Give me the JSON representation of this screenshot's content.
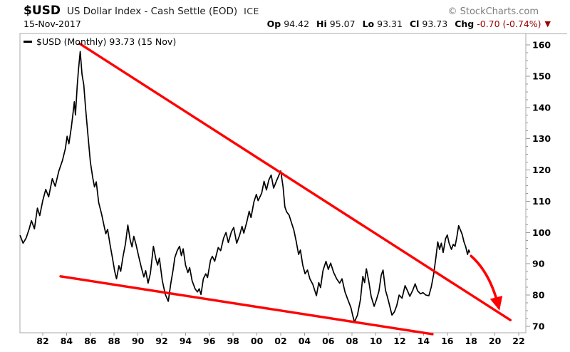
{
  "header": {
    "symbol": "$USD",
    "title": "US Dollar Index - Cash Settle (EOD)",
    "exchange": "ICE",
    "copyright": "© StockCharts.com",
    "date": "15-Nov-2017",
    "quote": {
      "op_label": "Op",
      "op_value": "94.42",
      "hi_label": "Hi",
      "hi_value": "95.07",
      "lo_label": "Lo",
      "lo_value": "93.31",
      "cl_label": "Cl",
      "cl_value": "93.73",
      "chg_label": "Chg",
      "chg_value": "-0.70 (-0.74%)",
      "direction_icon": "▼"
    }
  },
  "legend": {
    "dash": "",
    "text": "$USD (Monthly) 93.73 (15 Nov)"
  },
  "colors": {
    "price_line": "#000000",
    "annotation_red": "#ff0000",
    "change_red": "#990000",
    "frame": "#aaaaaa",
    "tick": "#999999",
    "axis_text": "#000000",
    "background": "#ffffff"
  },
  "chart_data": {
    "type": "line",
    "title": "$USD (Monthly) 93.73 (15 Nov)",
    "symbol": "$USD",
    "timeframe": "Monthly",
    "last_value": 93.73,
    "last_date": "15 Nov",
    "x_axis": {
      "tick_labels": [
        "82",
        "84",
        "86",
        "88",
        "90",
        "92",
        "94",
        "96",
        "98",
        "00",
        "02",
        "04",
        "06",
        "08",
        "10",
        "12",
        "14",
        "16",
        "18",
        "20",
        "22"
      ],
      "tick_years": [
        1982,
        1984,
        1986,
        1988,
        1990,
        1992,
        1994,
        1996,
        1998,
        2000,
        2002,
        2004,
        2006,
        2008,
        2010,
        2012,
        2014,
        2016,
        2018,
        2020,
        2022
      ],
      "range_years": [
        1980.1,
        2022.6
      ]
    },
    "y_axis": {
      "tick_values": [
        70,
        80,
        90,
        100,
        110,
        120,
        130,
        140,
        150,
        160
      ],
      "minor_step": 2.5,
      "range": [
        68.9,
        163.6
      ],
      "side": "right"
    },
    "grid": false,
    "legend_position": "top-left",
    "series": [
      {
        "name": "$USD (Monthly)",
        "color": "#000000",
        "points": [
          [
            1980.1,
            99.0
          ],
          [
            1980.35,
            96.6
          ],
          [
            1980.6,
            98.2
          ],
          [
            1980.85,
            101.0
          ],
          [
            1981.05,
            103.8
          ],
          [
            1981.3,
            101.2
          ],
          [
            1981.55,
            107.8
          ],
          [
            1981.75,
            105.4
          ],
          [
            1982.0,
            110.2
          ],
          [
            1982.25,
            113.8
          ],
          [
            1982.5,
            111.4
          ],
          [
            1982.8,
            117.2
          ],
          [
            1983.05,
            114.8
          ],
          [
            1983.35,
            119.6
          ],
          [
            1983.65,
            123.0
          ],
          [
            1983.9,
            126.8
          ],
          [
            1984.05,
            130.8
          ],
          [
            1984.2,
            128.4
          ],
          [
            1984.4,
            133.6
          ],
          [
            1984.55,
            138.4
          ],
          [
            1984.65,
            141.8
          ],
          [
            1984.75,
            137.6
          ],
          [
            1984.9,
            147.0
          ],
          [
            1985.0,
            152.0
          ],
          [
            1985.15,
            157.9
          ],
          [
            1985.3,
            150.6
          ],
          [
            1985.45,
            147.2
          ],
          [
            1985.6,
            139.8
          ],
          [
            1985.8,
            131.0
          ],
          [
            1986.0,
            122.6
          ],
          [
            1986.2,
            117.6
          ],
          [
            1986.35,
            114.6
          ],
          [
            1986.5,
            116.2
          ],
          [
            1986.7,
            109.6
          ],
          [
            1986.95,
            105.8
          ],
          [
            1987.15,
            102.2
          ],
          [
            1987.3,
            99.6
          ],
          [
            1987.45,
            101.0
          ],
          [
            1987.65,
            96.2
          ],
          [
            1987.85,
            92.0
          ],
          [
            1988.05,
            87.6
          ],
          [
            1988.2,
            85.2
          ],
          [
            1988.4,
            89.4
          ],
          [
            1988.55,
            87.6
          ],
          [
            1988.75,
            92.4
          ],
          [
            1988.95,
            96.4
          ],
          [
            1989.15,
            102.4
          ],
          [
            1989.35,
            97.6
          ],
          [
            1989.5,
            95.4
          ],
          [
            1989.65,
            98.8
          ],
          [
            1989.85,
            96.0
          ],
          [
            1990.05,
            92.6
          ],
          [
            1990.3,
            88.6
          ],
          [
            1990.5,
            85.8
          ],
          [
            1990.65,
            87.8
          ],
          [
            1990.85,
            83.8
          ],
          [
            1991.05,
            87.0
          ],
          [
            1991.3,
            95.6
          ],
          [
            1991.5,
            91.6
          ],
          [
            1991.65,
            89.6
          ],
          [
            1991.8,
            91.8
          ],
          [
            1992.05,
            84.6
          ],
          [
            1992.3,
            80.2
          ],
          [
            1992.55,
            78.0
          ],
          [
            1992.75,
            83.4
          ],
          [
            1992.95,
            88.0
          ],
          [
            1993.1,
            92.0
          ],
          [
            1993.3,
            94.2
          ],
          [
            1993.5,
            95.6
          ],
          [
            1993.65,
            92.6
          ],
          [
            1993.8,
            94.8
          ],
          [
            1994.0,
            89.6
          ],
          [
            1994.2,
            87.2
          ],
          [
            1994.35,
            88.8
          ],
          [
            1994.55,
            84.6
          ],
          [
            1994.8,
            82.0
          ],
          [
            1995.0,
            81.0
          ],
          [
            1995.15,
            82.0
          ],
          [
            1995.3,
            80.2
          ],
          [
            1995.5,
            85.2
          ],
          [
            1995.7,
            86.8
          ],
          [
            1995.85,
            85.6
          ],
          [
            1996.1,
            91.2
          ],
          [
            1996.25,
            92.4
          ],
          [
            1996.45,
            90.8
          ],
          [
            1996.75,
            95.2
          ],
          [
            1996.95,
            94.2
          ],
          [
            1997.2,
            98.2
          ],
          [
            1997.4,
            100.0
          ],
          [
            1997.6,
            96.8
          ],
          [
            1997.85,
            100.2
          ],
          [
            1998.05,
            101.6
          ],
          [
            1998.3,
            96.6
          ],
          [
            1998.55,
            99.2
          ],
          [
            1998.75,
            102.0
          ],
          [
            1998.9,
            99.8
          ],
          [
            1999.15,
            103.4
          ],
          [
            1999.35,
            106.8
          ],
          [
            1999.5,
            104.8
          ],
          [
            1999.75,
            109.8
          ],
          [
            1999.95,
            112.2
          ],
          [
            2000.1,
            110.2
          ],
          [
            2000.4,
            112.6
          ],
          [
            2000.6,
            116.4
          ],
          [
            2000.8,
            113.6
          ],
          [
            2001.0,
            116.8
          ],
          [
            2001.2,
            118.4
          ],
          [
            2001.4,
            114.2
          ],
          [
            2001.65,
            116.6
          ],
          [
            2002.0,
            119.7
          ],
          [
            2002.2,
            114.6
          ],
          [
            2002.35,
            108.2
          ],
          [
            2002.5,
            106.6
          ],
          [
            2002.7,
            105.6
          ],
          [
            2002.9,
            103.2
          ],
          [
            2003.1,
            100.8
          ],
          [
            2003.3,
            97.2
          ],
          [
            2003.5,
            93.0
          ],
          [
            2003.65,
            94.4
          ],
          [
            2003.85,
            89.6
          ],
          [
            2004.05,
            86.8
          ],
          [
            2004.25,
            88.0
          ],
          [
            2004.45,
            85.2
          ],
          [
            2004.7,
            83.4
          ],
          [
            2005.0,
            79.8
          ],
          [
            2005.2,
            84.0
          ],
          [
            2005.35,
            82.4
          ],
          [
            2005.55,
            87.8
          ],
          [
            2005.8,
            90.8
          ],
          [
            2006.0,
            88.2
          ],
          [
            2006.2,
            90.2
          ],
          [
            2006.45,
            87.2
          ],
          [
            2006.7,
            85.2
          ],
          [
            2006.95,
            83.8
          ],
          [
            2007.15,
            85.2
          ],
          [
            2007.4,
            81.0
          ],
          [
            2007.65,
            78.4
          ],
          [
            2007.9,
            76.0
          ],
          [
            2008.05,
            73.5
          ],
          [
            2008.2,
            71.4
          ],
          [
            2008.45,
            73.6
          ],
          [
            2008.7,
            78.6
          ],
          [
            2008.9,
            86.0
          ],
          [
            2009.05,
            84.0
          ],
          [
            2009.2,
            88.4
          ],
          [
            2009.4,
            84.4
          ],
          [
            2009.6,
            79.6
          ],
          [
            2009.85,
            76.4
          ],
          [
            2010.05,
            78.6
          ],
          [
            2010.25,
            81.2
          ],
          [
            2010.45,
            86.4
          ],
          [
            2010.6,
            88.0
          ],
          [
            2010.8,
            81.6
          ],
          [
            2010.95,
            79.6
          ],
          [
            2011.1,
            77.4
          ],
          [
            2011.35,
            73.6
          ],
          [
            2011.55,
            74.6
          ],
          [
            2011.75,
            76.6
          ],
          [
            2011.95,
            80.0
          ],
          [
            2012.2,
            79.0
          ],
          [
            2012.45,
            83.0
          ],
          [
            2012.65,
            81.4
          ],
          [
            2012.85,
            79.6
          ],
          [
            2013.1,
            81.6
          ],
          [
            2013.3,
            83.6
          ],
          [
            2013.5,
            81.4
          ],
          [
            2013.75,
            80.4
          ],
          [
            2013.95,
            80.8
          ],
          [
            2014.2,
            80.0
          ],
          [
            2014.45,
            79.8
          ],
          [
            2014.65,
            82.6
          ],
          [
            2014.85,
            86.6
          ],
          [
            2015.05,
            92.2
          ],
          [
            2015.2,
            97.0
          ],
          [
            2015.35,
            94.6
          ],
          [
            2015.5,
            96.6
          ],
          [
            2015.65,
            93.6
          ],
          [
            2015.85,
            98.0
          ],
          [
            2016.0,
            99.2
          ],
          [
            2016.15,
            96.6
          ],
          [
            2016.35,
            94.6
          ],
          [
            2016.5,
            96.2
          ],
          [
            2016.65,
            95.6
          ],
          [
            2016.8,
            98.6
          ],
          [
            2016.95,
            102.2
          ],
          [
            2017.1,
            100.8
          ],
          [
            2017.25,
            99.4
          ],
          [
            2017.4,
            97.0
          ],
          [
            2017.55,
            95.4
          ],
          [
            2017.7,
            93.0
          ],
          [
            2017.8,
            94.4
          ],
          [
            2017.88,
            93.73
          ]
        ]
      }
    ],
    "trendlines": [
      {
        "name": "descending-resistance",
        "color": "#ff0000",
        "from": [
          1985.1,
          160.4
        ],
        "to": [
          2021.3,
          72.0
        ]
      },
      {
        "name": "descending-support",
        "color": "#ff0000",
        "from": [
          1983.5,
          86.0
        ],
        "to": [
          2014.75,
          67.5
        ]
      }
    ],
    "arrow": {
      "name": "projection-down-arrow",
      "color": "#ff0000",
      "from": [
        2018.0,
        92.5
      ],
      "control": [
        2019.6,
        87.1
      ],
      "to": [
        2020.3,
        76.4
      ]
    }
  }
}
